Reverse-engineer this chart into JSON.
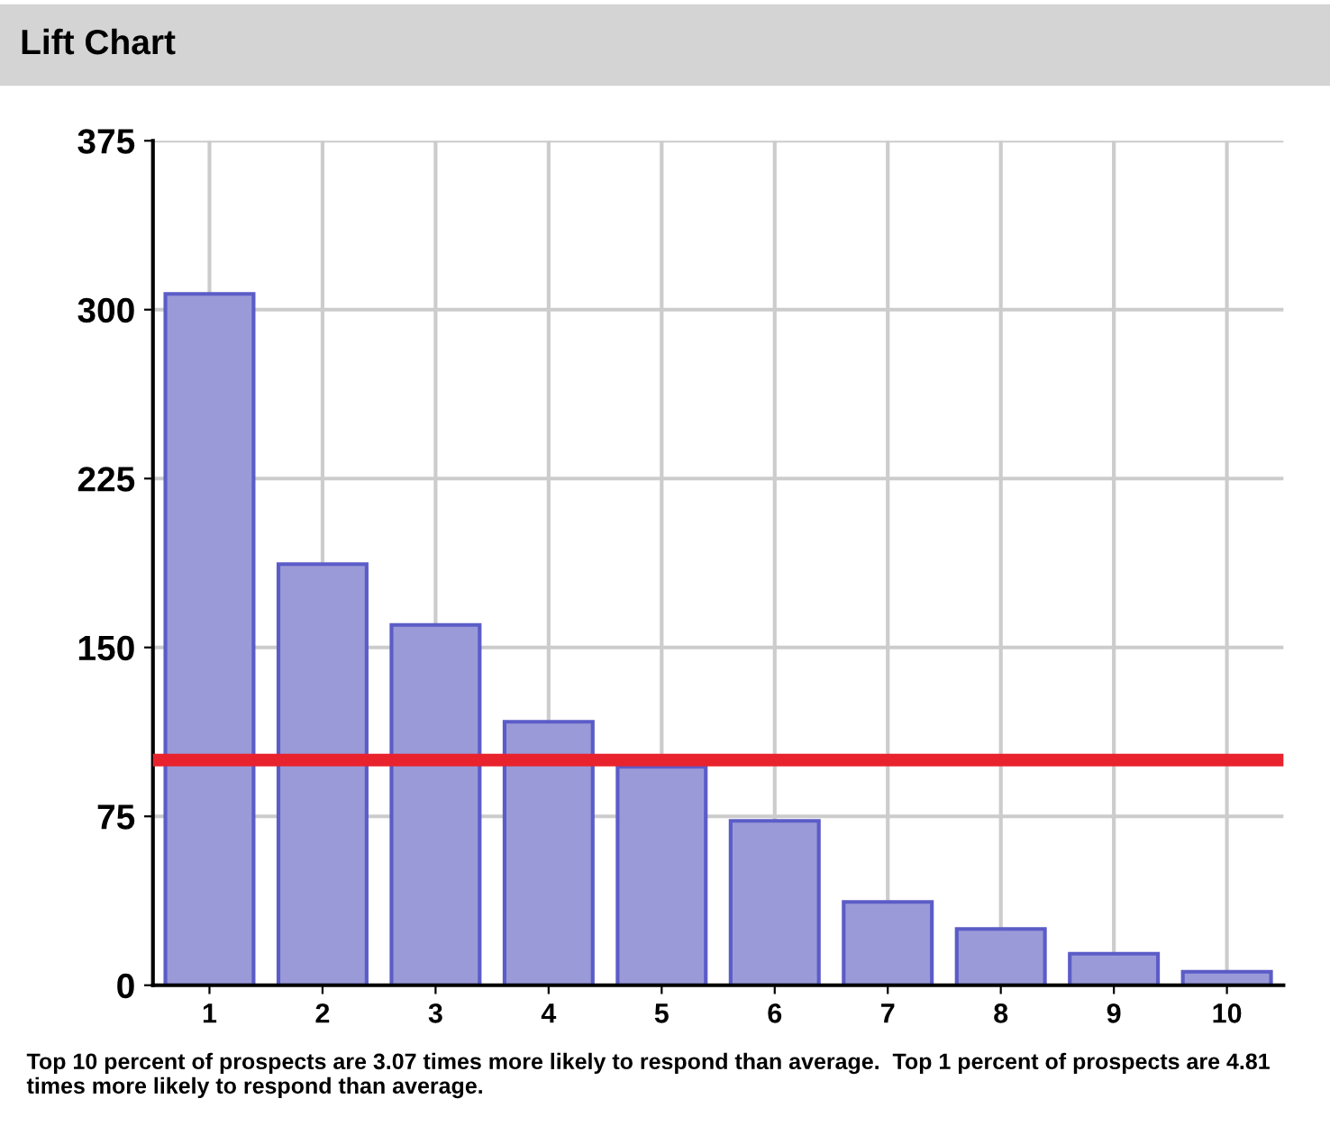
{
  "chart_data": {
    "type": "bar",
    "title": "Lift Chart",
    "categories": [
      "1",
      "2",
      "3",
      "4",
      "5",
      "6",
      "7",
      "8",
      "9",
      "10"
    ],
    "values": [
      307,
      187,
      160,
      117,
      97,
      73,
      37,
      25,
      14,
      6
    ],
    "color": "#9a9ad8",
    "ylim": [
      0,
      375
    ],
    "yticks": [
      0,
      75,
      150,
      225,
      300,
      375
    ],
    "grid": true,
    "ref_lines": [
      {
        "axis": "y",
        "value": 100,
        "color": "#e8232e"
      }
    ],
    "annotations": [
      "Top 10 percent of prospects are 3.07 times more likely to respond than average.  Top 1 percent of prospects are 4.81 times more likely to respond than average."
    ]
  }
}
